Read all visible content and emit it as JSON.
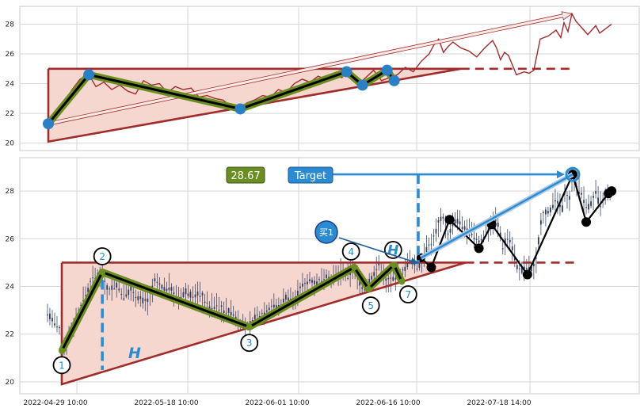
{
  "chart_data": [
    {
      "type": "line",
      "panel": "top",
      "ylim": [
        19.5,
        29.2
      ],
      "y_ticks": [
        20,
        22,
        24,
        26,
        28
      ],
      "grid": true,
      "price_series": [
        [
          0,
          21.3
        ],
        [
          10,
          22.0
        ],
        [
          20,
          22.8
        ],
        [
          30,
          23.6
        ],
        [
          40,
          24.3
        ],
        [
          51,
          24.6
        ],
        [
          60,
          23.8
        ],
        [
          70,
          24.1
        ],
        [
          80,
          23.6
        ],
        [
          90,
          23.9
        ],
        [
          100,
          23.5
        ],
        [
          110,
          23.3
        ],
        [
          120,
          24.2
        ],
        [
          130,
          23.9
        ],
        [
          140,
          24.0
        ],
        [
          150,
          23.4
        ],
        [
          160,
          23.8
        ],
        [
          170,
          23.6
        ],
        [
          180,
          23.7
        ],
        [
          190,
          23.1
        ],
        [
          200,
          23.2
        ],
        [
          210,
          23.0
        ],
        [
          220,
          22.9
        ],
        [
          230,
          22.5
        ],
        [
          240,
          22.3
        ],
        [
          250,
          22.7
        ],
        [
          260,
          22.9
        ],
        [
          270,
          23.2
        ],
        [
          280,
          23.1
        ],
        [
          290,
          23.6
        ],
        [
          300,
          23.4
        ],
        [
          310,
          24.0
        ],
        [
          320,
          24.3
        ],
        [
          330,
          24.1
        ],
        [
          340,
          24.5
        ],
        [
          350,
          24.3
        ],
        [
          360,
          24.6
        ],
        [
          370,
          24.4
        ],
        [
          376,
          24.8
        ],
        [
          384,
          24.2
        ],
        [
          390,
          23.9
        ],
        [
          400,
          24.4
        ],
        [
          410,
          24.9
        ],
        [
          420,
          24.2
        ],
        [
          430,
          24.4
        ],
        [
          440,
          24.6
        ],
        [
          450,
          25.1
        ],
        [
          460,
          24.8
        ],
        [
          470,
          25.5
        ],
        [
          480,
          26.0
        ],
        [
          486,
          26.6
        ],
        [
          492,
          27.0
        ],
        [
          498,
          26.1
        ],
        [
          504,
          26.5
        ],
        [
          510,
          26.8
        ],
        [
          520,
          26.4
        ],
        [
          530,
          26.2
        ],
        [
          540,
          25.8
        ],
        [
          550,
          26.4
        ],
        [
          560,
          26.9
        ],
        [
          565,
          26.4
        ],
        [
          570,
          25.6
        ],
        [
          575,
          26.1
        ],
        [
          580,
          25.9
        ],
        [
          590,
          24.6
        ],
        [
          600,
          24.8
        ],
        [
          606,
          24.7
        ],
        [
          612,
          24.9
        ],
        [
          620,
          27.0
        ],
        [
          630,
          27.2
        ],
        [
          640,
          27.6
        ],
        [
          646,
          27.1
        ],
        [
          650,
          28.1
        ],
        [
          655,
          27.5
        ],
        [
          660,
          28.7
        ],
        [
          665,
          28.2
        ],
        [
          670,
          27.9
        ],
        [
          680,
          27.3
        ],
        [
          690,
          27.9
        ],
        [
          695,
          27.4
        ],
        [
          705,
          27.8
        ],
        [
          710,
          28.0
        ]
      ],
      "pattern_points": [
        [
          0,
          21.3
        ],
        [
          51,
          24.6
        ],
        [
          242,
          22.3
        ],
        [
          376,
          24.8
        ],
        [
          396,
          23.9
        ],
        [
          427,
          24.9
        ],
        [
          436,
          24.2
        ]
      ],
      "triangle": [
        [
          0,
          25.0
        ],
        [
          0,
          20.1
        ],
        [
          520,
          25.0
        ]
      ],
      "breakout_line": [
        [
          520,
          25.0
        ],
        [
          660,
          25.0
        ]
      ],
      "arrow": {
        "from": [
          0,
          21.3
        ],
        "to": [
          660,
          28.7
        ]
      }
    },
    {
      "type": "candlestick",
      "panel": "bottom",
      "ylim": [
        19.5,
        29.4
      ],
      "y_ticks": [
        20,
        22,
        24,
        26,
        28
      ],
      "x_ticks": [
        "2022-04-29 10:00",
        "2022-05-18 10:00",
        "2022-06-01 10:00",
        "2022-06-16 10:00",
        "2022-07-18 14:00"
      ],
      "grid": true,
      "pattern_points": [
        [
          0,
          21.3
        ],
        [
          51,
          24.6
        ],
        [
          236,
          22.3
        ],
        [
          368,
          24.8
        ],
        [
          386,
          23.9
        ],
        [
          418,
          24.9
        ],
        [
          428,
          24.2
        ]
      ],
      "point_labels": [
        {
          "text": "1",
          "point": 0
        },
        {
          "text": "2",
          "point": 1
        },
        {
          "text": "3",
          "point": 2
        },
        {
          "text": "4",
          "point": 3
        },
        {
          "text": "5",
          "point": 4
        },
        {
          "text": "H",
          "point": 5
        },
        {
          "text": "7",
          "point": 6
        }
      ],
      "post_points": [
        [
          452,
          25.2
        ],
        [
          465,
          24.8
        ],
        [
          488,
          26.8
        ],
        [
          525,
          25.6
        ],
        [
          541,
          26.6
        ],
        [
          586,
          24.5
        ],
        [
          643,
          28.7
        ],
        [
          660,
          26.7
        ],
        [
          688,
          27.9
        ],
        [
          692,
          28.0
        ]
      ],
      "triangle": [
        [
          0,
          25.0
        ],
        [
          0,
          19.9
        ],
        [
          508,
          25.0
        ]
      ],
      "breakout_line": [
        [
          508,
          25.0
        ],
        [
          645,
          25.0
        ]
      ],
      "height_label": "H",
      "buy_marker": "买1",
      "target_label": "Target",
      "target_value": "28.67"
    }
  ],
  "colors": {
    "triangle": "#a02c2c",
    "triangle_fill": "#f6d7cf",
    "pattern_outer": "#6b8e23",
    "pattern_inner": "#000000",
    "point_top": "#2b7fc3",
    "price_line": "#a02c2c",
    "annotation_blue": "#2b8ad0",
    "value_box": "#6b8e23"
  }
}
